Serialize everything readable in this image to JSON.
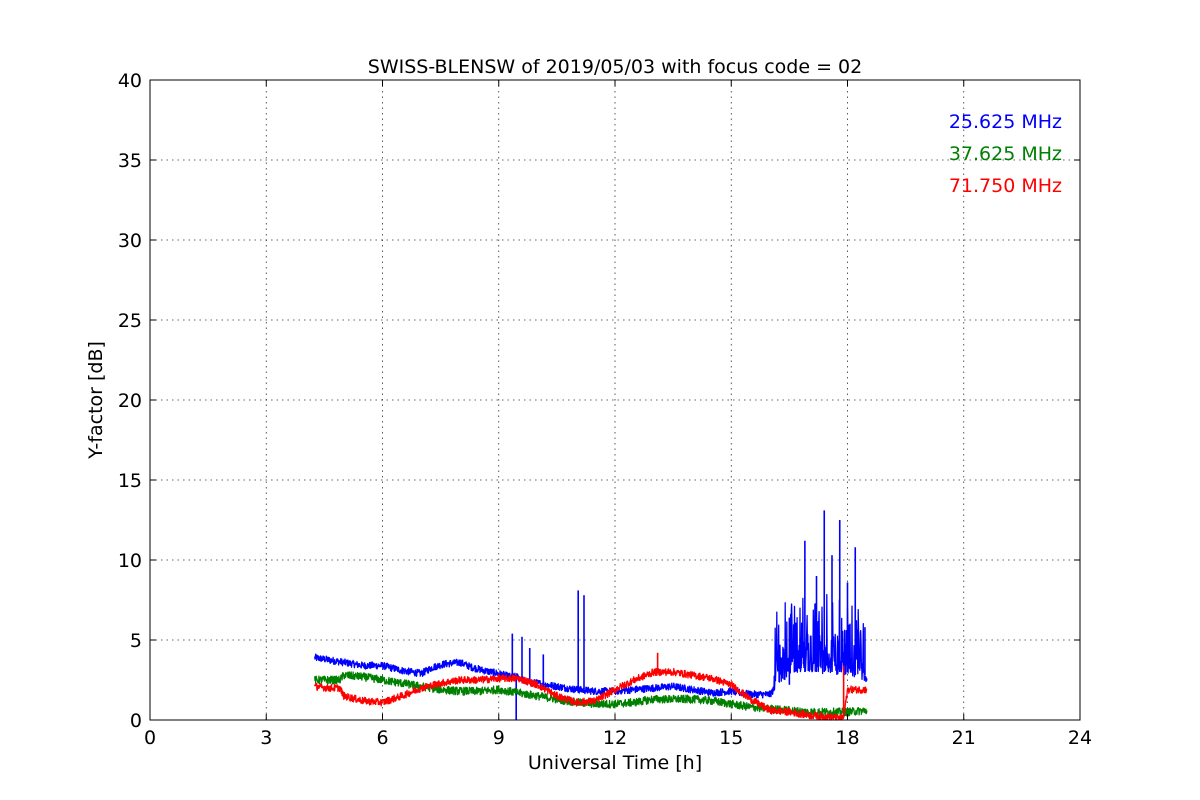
{
  "chart_data": {
    "type": "line",
    "title": "SWISS-BLENSW of 2019/05/03 with focus code = 02",
    "xlabel": "Universal Time [h]",
    "ylabel": "Y-factor [dB]",
    "xlim": [
      0,
      24
    ],
    "ylim": [
      0,
      40
    ],
    "xticks": [
      0,
      3,
      6,
      9,
      12,
      15,
      18,
      21,
      24
    ],
    "yticks": [
      0,
      5,
      10,
      15,
      20,
      25,
      30,
      35,
      40
    ],
    "grid": true,
    "legend_position": "top-right",
    "series": [
      {
        "name": "25.625 MHz",
        "color": "#0000ff",
        "x": [
          4.25,
          4.5,
          5.0,
          5.5,
          6.0,
          6.5,
          7.0,
          7.3,
          7.6,
          8.0,
          8.3,
          8.6,
          9.0,
          9.3,
          9.5,
          9.7,
          10.0,
          10.5,
          11.0,
          11.5,
          12.0,
          12.5,
          13.0,
          13.5,
          14.0,
          14.5,
          15.0,
          15.5,
          16.0,
          16.2,
          16.5,
          17.0,
          17.5,
          18.0,
          18.5
        ],
        "y": [
          3.9,
          3.8,
          3.6,
          3.4,
          3.4,
          3.1,
          2.9,
          3.3,
          3.5,
          3.6,
          3.3,
          3.1,
          2.9,
          2.7,
          2.7,
          2.4,
          2.3,
          2.1,
          1.9,
          1.8,
          1.8,
          1.9,
          2.0,
          2.1,
          1.9,
          1.7,
          1.8,
          1.6,
          1.6,
          2.2,
          3.0,
          3.0,
          3.0,
          2.8,
          2.6
        ],
        "spikes": [
          {
            "x": 9.35,
            "y": 5.4
          },
          {
            "x": 9.45,
            "y": 0.0
          },
          {
            "x": 9.6,
            "y": 5.2
          },
          {
            "x": 9.8,
            "y": 4.5
          },
          {
            "x": 10.15,
            "y": 4.1
          },
          {
            "x": 11.05,
            "y": 8.1
          },
          {
            "x": 11.2,
            "y": 7.8
          },
          {
            "x": 16.5,
            "y": 6.4
          },
          {
            "x": 16.9,
            "y": 11.2
          },
          {
            "x": 17.2,
            "y": 9.0
          },
          {
            "x": 17.4,
            "y": 13.1
          },
          {
            "x": 17.6,
            "y": 10.3
          },
          {
            "x": 17.8,
            "y": 12.5
          },
          {
            "x": 18.0,
            "y": 8.6
          },
          {
            "x": 18.2,
            "y": 10.8
          },
          {
            "x": 18.45,
            "y": 5.8
          }
        ]
      },
      {
        "name": "37.625 MHz",
        "color": "#008000",
        "x": [
          4.25,
          4.5,
          4.9,
          5.0,
          5.5,
          6.0,
          6.5,
          7.0,
          7.5,
          8.0,
          8.5,
          9.0,
          9.5,
          10.0,
          10.5,
          11.0,
          11.5,
          12.0,
          12.5,
          13.0,
          13.5,
          14.0,
          14.5,
          15.0,
          15.5,
          16.0,
          16.5,
          17.0,
          17.5,
          18.0,
          18.5
        ],
        "y": [
          2.5,
          2.5,
          2.5,
          2.8,
          2.7,
          2.5,
          2.3,
          2.1,
          1.9,
          1.8,
          1.8,
          1.9,
          1.7,
          1.5,
          1.3,
          1.1,
          1.0,
          1.0,
          1.1,
          1.3,
          1.3,
          1.3,
          1.2,
          1.0,
          0.8,
          0.7,
          0.6,
          0.5,
          0.5,
          0.5,
          0.6
        ],
        "spikes": []
      },
      {
        "name": "71.750 MHz",
        "color": "#ff0000",
        "x": [
          4.25,
          4.6,
          4.9,
          5.0,
          5.5,
          6.0,
          6.5,
          7.0,
          7.5,
          8.0,
          8.5,
          9.0,
          9.5,
          10.0,
          10.5,
          11.0,
          11.5,
          12.0,
          12.5,
          13.0,
          13.5,
          14.0,
          14.5,
          15.0,
          15.5,
          16.0,
          16.5,
          17.0,
          17.5,
          17.9,
          18.0,
          18.5
        ],
        "y": [
          2.1,
          2.0,
          2.0,
          1.5,
          1.2,
          1.1,
          1.5,
          2.0,
          2.3,
          2.5,
          2.5,
          2.6,
          2.6,
          2.2,
          1.5,
          1.1,
          1.2,
          1.9,
          2.5,
          3.0,
          3.0,
          2.8,
          2.6,
          2.2,
          1.3,
          0.6,
          0.5,
          0.3,
          0.2,
          0.1,
          1.9,
          1.9
        ],
        "spikes": [
          {
            "x": 13.1,
            "y": 4.2
          },
          {
            "x": 17.9,
            "y": 3.4
          }
        ]
      }
    ]
  }
}
